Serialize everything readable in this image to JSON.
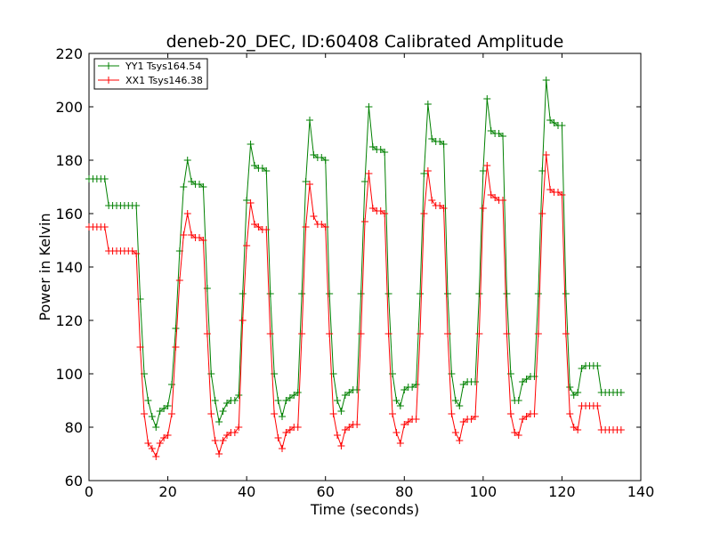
{
  "chart_data": {
    "type": "line",
    "title": "deneb-20_DEC, ID:60408 Calibrated Amplitude",
    "xlabel": "Time (seconds)",
    "ylabel": "Power in Kelvin",
    "xlim": [
      0,
      140
    ],
    "ylim": [
      60,
      220
    ],
    "xticks": [
      0,
      20,
      40,
      60,
      80,
      100,
      120,
      140
    ],
    "yticks": [
      60,
      80,
      100,
      120,
      140,
      160,
      180,
      200,
      220
    ],
    "grid": false,
    "legend_position": "top-left",
    "series": [
      {
        "name": "YY1 Tsys164.54",
        "color": "#008000",
        "marker": "plus",
        "x": [
          0,
          1,
          2,
          3,
          4,
          5,
          6,
          7,
          8,
          9,
          10,
          11,
          12,
          13,
          14,
          15,
          16,
          17,
          18,
          19,
          20,
          21,
          22,
          23,
          24,
          25,
          26,
          27,
          28,
          29,
          30,
          31,
          32,
          33,
          34,
          35,
          36,
          37,
          38,
          39,
          40,
          41,
          42,
          43,
          44,
          45,
          46,
          47,
          48,
          49,
          50,
          51,
          52,
          53,
          54,
          55,
          56,
          57,
          58,
          59,
          60,
          61,
          62,
          63,
          64,
          65,
          66,
          67,
          68,
          69,
          70,
          71,
          72,
          73,
          74,
          75,
          76,
          77,
          78,
          79,
          80,
          81,
          82,
          83,
          84,
          85,
          86,
          87,
          88,
          89,
          90,
          91,
          92,
          93,
          94,
          95,
          96,
          97,
          98,
          99,
          100,
          101,
          102,
          103,
          104,
          105,
          106,
          107,
          108,
          109,
          110,
          111,
          112,
          113,
          114,
          115,
          116,
          117,
          118,
          119,
          120,
          121,
          122,
          123,
          124,
          125,
          126,
          127,
          128,
          129,
          130,
          131,
          132,
          133,
          134,
          135
        ],
        "y": [
          173,
          173,
          173,
          173,
          173,
          163,
          163,
          163,
          163,
          163,
          163,
          163,
          163,
          128,
          100,
          90,
          84,
          80,
          86,
          87,
          88,
          96,
          117,
          146,
          170,
          180,
          172,
          171,
          171,
          170,
          132,
          100,
          90,
          82,
          86,
          89,
          90,
          90,
          92,
          130,
          165,
          186,
          178,
          177,
          177,
          176,
          130,
          100,
          90,
          84,
          90,
          91,
          92,
          93,
          130,
          172,
          195,
          182,
          181,
          181,
          180,
          130,
          100,
          90,
          86,
          92,
          93,
          94,
          94,
          130,
          172,
          200,
          185,
          184,
          184,
          183,
          130,
          100,
          90,
          88,
          94,
          95,
          95,
          96,
          130,
          175,
          201,
          188,
          187,
          187,
          186,
          130,
          100,
          90,
          88,
          96,
          97,
          97,
          97,
          130,
          176,
          203,
          191,
          190,
          190,
          189,
          130,
          100,
          90,
          90,
          97,
          98,
          99,
          99,
          130,
          176,
          210,
          195,
          194,
          193,
          193,
          130,
          95,
          92,
          93,
          102,
          103,
          103,
          103,
          103,
          93,
          93,
          93,
          93,
          93,
          93
        ]
      },
      {
        "name": "XX1 Tsys146.38",
        "color": "#ff0000",
        "marker": "plus",
        "x": [
          0,
          1,
          2,
          3,
          4,
          5,
          6,
          7,
          8,
          9,
          10,
          11,
          12,
          13,
          14,
          15,
          16,
          17,
          18,
          19,
          20,
          21,
          22,
          23,
          24,
          25,
          26,
          27,
          28,
          29,
          30,
          31,
          32,
          33,
          34,
          35,
          36,
          37,
          38,
          39,
          40,
          41,
          42,
          43,
          44,
          45,
          46,
          47,
          48,
          49,
          50,
          51,
          52,
          53,
          54,
          55,
          56,
          57,
          58,
          59,
          60,
          61,
          62,
          63,
          64,
          65,
          66,
          67,
          68,
          69,
          70,
          71,
          72,
          73,
          74,
          75,
          76,
          77,
          78,
          79,
          80,
          81,
          82,
          83,
          84,
          85,
          86,
          87,
          88,
          89,
          90,
          91,
          92,
          93,
          94,
          95,
          96,
          97,
          98,
          99,
          100,
          101,
          102,
          103,
          104,
          105,
          106,
          107,
          108,
          109,
          110,
          111,
          112,
          113,
          114,
          115,
          116,
          117,
          118,
          119,
          120,
          121,
          122,
          123,
          124,
          125,
          126,
          127,
          128,
          129,
          130,
          131,
          132,
          133,
          134,
          135
        ],
        "y": [
          155,
          155,
          155,
          155,
          155,
          146,
          146,
          146,
          146,
          146,
          146,
          146,
          145,
          110,
          85,
          74,
          72,
          69,
          74,
          76,
          77,
          85,
          110,
          135,
          152,
          160,
          152,
          151,
          151,
          150,
          115,
          85,
          75,
          70,
          75,
          77,
          78,
          78,
          80,
          120,
          148,
          164,
          156,
          155,
          154,
          154,
          115,
          85,
          76,
          72,
          78,
          79,
          80,
          80,
          115,
          155,
          171,
          159,
          156,
          156,
          155,
          115,
          85,
          77,
          73,
          79,
          80,
          81,
          81,
          115,
          157,
          175,
          162,
          161,
          161,
          160,
          115,
          85,
          78,
          74,
          81,
          82,
          83,
          83,
          115,
          160,
          176,
          165,
          163,
          163,
          162,
          115,
          85,
          78,
          75,
          82,
          83,
          83,
          84,
          115,
          162,
          178,
          167,
          166,
          165,
          165,
          115,
          85,
          78,
          77,
          83,
          84,
          85,
          85,
          115,
          160,
          182,
          169,
          168,
          168,
          167,
          115,
          85,
          80,
          79,
          88,
          88,
          88,
          88,
          88,
          79,
          79,
          79,
          79,
          79,
          79
        ]
      }
    ]
  }
}
